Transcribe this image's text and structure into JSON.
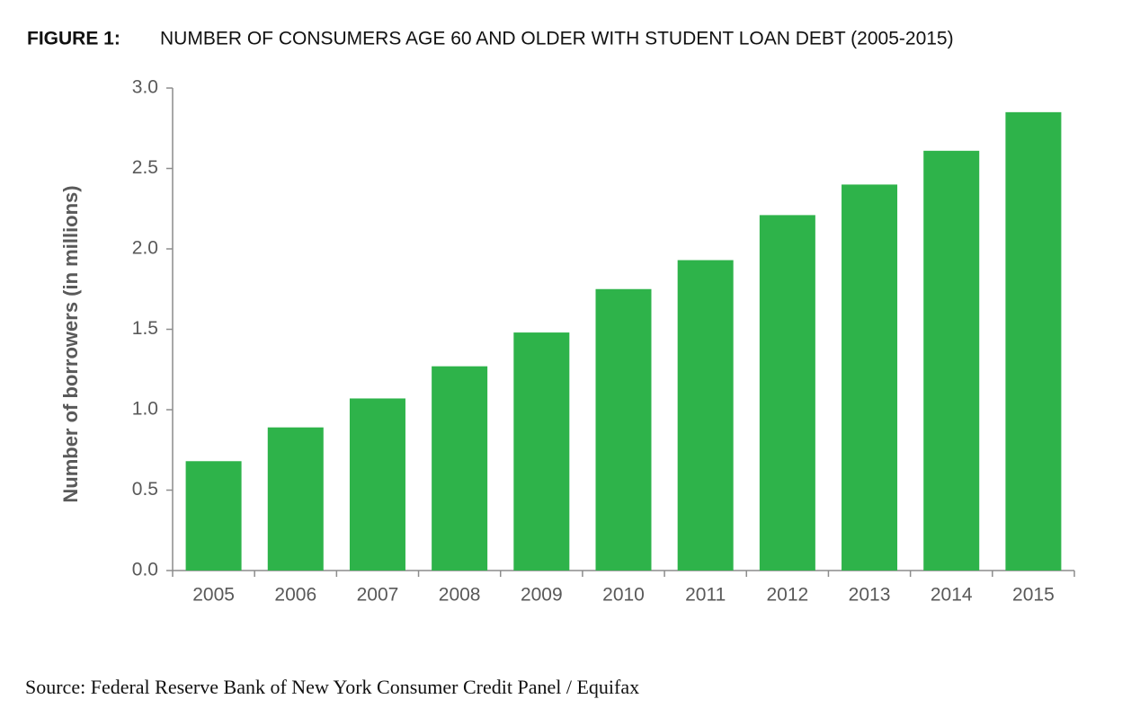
{
  "chart_data": {
    "type": "bar",
    "figure_label": "FIGURE 1:",
    "title": "NUMBER OF CONSUMERS AGE 60 AND OLDER WITH STUDENT LOAN DEBT (2005-2015)",
    "y_label": "Number of borrowers (in millions)",
    "source": "Source: Federal Reserve Bank of New York Consumer Credit Panel / Equifax",
    "categories": [
      "2005",
      "2006",
      "2007",
      "2008",
      "2009",
      "2010",
      "2011",
      "2012",
      "2013",
      "2014",
      "2015"
    ],
    "values": [
      0.68,
      0.89,
      1.07,
      1.27,
      1.48,
      1.75,
      1.93,
      2.21,
      2.4,
      2.61,
      2.85
    ],
    "color": "#2eb34a",
    "ylim": [
      0,
      3
    ],
    "yticks": [
      {
        "value": 0,
        "label": "0.0"
      },
      0.5,
      {
        "value": 1,
        "label": "1.0"
      },
      1.5,
      {
        "value": 2,
        "label": "2.0"
      },
      2.5,
      {
        "value": 3,
        "label": "3.0"
      }
    ],
    "grid": false
  }
}
